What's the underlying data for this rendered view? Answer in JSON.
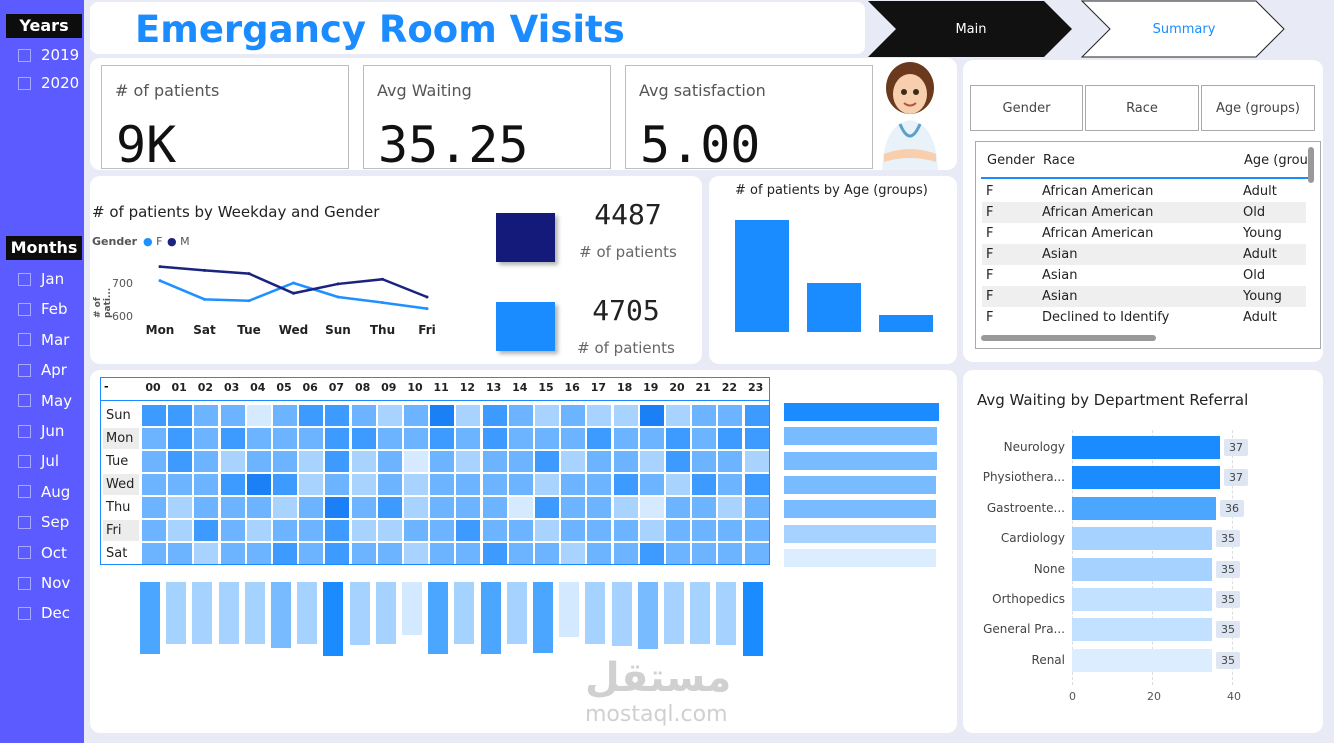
{
  "title": "Emergancy Room Visits",
  "tabs": [
    {
      "label": "Main",
      "active": true
    },
    {
      "label": "Summary",
      "active": false
    }
  ],
  "sidebar": {
    "years_header": "Years",
    "years": [
      "2019",
      "2020"
    ],
    "months_header": "Months",
    "months": [
      "Jan",
      "Feb",
      "Mar",
      "Apr",
      "May",
      "Jun",
      "Jul",
      "Aug",
      "Sep",
      "Oct",
      "Nov",
      "Dec"
    ]
  },
  "kpis": [
    {
      "label": "# of patients",
      "value": "9K"
    },
    {
      "label": "Avg Waiting",
      "value": "35.25"
    },
    {
      "label": "Avg satisfaction",
      "value": "5.00"
    }
  ],
  "weekday_chart": {
    "title": "# of patients by Weekday and Gender",
    "legend_title": "Gender",
    "legend": [
      {
        "name": "F",
        "color": "#1e90ff"
      },
      {
        "name": "M",
        "color": "#1a237e"
      }
    ],
    "ylabel": "# of pati...",
    "yticks": [
      "700",
      "600"
    ]
  },
  "gender_cards": [
    {
      "value": "4487",
      "label": "# of patients",
      "color": "#131a7a"
    },
    {
      "value": "4705",
      "label": "# of patients",
      "color": "#1b8cff"
    }
  ],
  "age_chart": {
    "title": "# of patients by Age (groups)"
  },
  "slicers": [
    "Gender",
    "Race",
    "Age (groups)"
  ],
  "table": {
    "headers": [
      "Gender",
      "Race",
      "Age (grou"
    ],
    "rows": [
      [
        "F",
        "African American",
        "Adult"
      ],
      [
        "F",
        "African American",
        "Old"
      ],
      [
        "F",
        "African American",
        "Young"
      ],
      [
        "F",
        "Asian",
        "Adult"
      ],
      [
        "F",
        "Asian",
        "Old"
      ],
      [
        "F",
        "Asian",
        "Young"
      ],
      [
        "F",
        "Declined to Identify",
        "Adult"
      ]
    ]
  },
  "heatmap": {
    "corner": "-",
    "hours": [
      "00",
      "01",
      "02",
      "03",
      "04",
      "05",
      "06",
      "07",
      "08",
      "09",
      "10",
      "11",
      "12",
      "13",
      "14",
      "15",
      "16",
      "17",
      "18",
      "19",
      "20",
      "21",
      "22",
      "23"
    ],
    "days": [
      "Sun",
      "Mon",
      "Tue",
      "Wed",
      "Thu",
      "Fri",
      "Sat"
    ]
  },
  "dept_chart": {
    "title": "Avg Waiting by Department Referral",
    "xticks": [
      "0",
      "20",
      "40"
    ]
  },
  "watermark": {
    "arabic": "مستقل",
    "latin": "mostaql.com"
  },
  "chart_data": [
    {
      "type": "line",
      "title": "# of patients by Weekday and Gender",
      "categories": [
        "Mon",
        "Sat",
        "Tue",
        "Wed",
        "Sun",
        "Thu",
        "Fri"
      ],
      "series": [
        {
          "name": "F",
          "values": [
            675,
            635,
            632,
            670,
            640,
            628,
            615
          ],
          "color": "#1e90ff"
        },
        {
          "name": "M",
          "values": [
            705,
            697,
            690,
            648,
            668,
            678,
            640
          ],
          "color": "#1a237e"
        }
      ],
      "ylim": [
        580,
        730
      ],
      "legend": "top-left"
    },
    {
      "type": "bar",
      "title": "# of patients by Age (groups)",
      "categories": [
        "",
        "",
        ""
      ],
      "values": [
        5600,
        2450,
        850
      ],
      "ylim": [
        0,
        6000
      ],
      "color": "#1b8cff"
    },
    {
      "type": "heatmap",
      "x": [
        "00",
        "01",
        "02",
        "03",
        "04",
        "05",
        "06",
        "07",
        "08",
        "09",
        "10",
        "11",
        "12",
        "13",
        "14",
        "15",
        "16",
        "17",
        "18",
        "19",
        "20",
        "21",
        "22",
        "23"
      ],
      "y": [
        "Sun",
        "Mon",
        "Tue",
        "Wed",
        "Thu",
        "Fri",
        "Sat"
      ],
      "values": [
        [
          4,
          4,
          3,
          3,
          1,
          3,
          4,
          4,
          3,
          2,
          3,
          5,
          2,
          4,
          3,
          2,
          3,
          2,
          2,
          5,
          2,
          3,
          3,
          4
        ],
        [
          3,
          4,
          3,
          4,
          3,
          3,
          3,
          4,
          4,
          3,
          3,
          4,
          3,
          4,
          3,
          3,
          3,
          4,
          3,
          3,
          4,
          3,
          4,
          4
        ],
        [
          3,
          4,
          3,
          2,
          3,
          3,
          2,
          4,
          2,
          3,
          1,
          3,
          2,
          3,
          3,
          4,
          2,
          3,
          3,
          2,
          4,
          3,
          3,
          2
        ],
        [
          3,
          3,
          3,
          4,
          5,
          4,
          2,
          3,
          2,
          3,
          2,
          3,
          3,
          3,
          3,
          2,
          3,
          3,
          4,
          3,
          2,
          4,
          3,
          4
        ],
        [
          3,
          2,
          3,
          3,
          3,
          2,
          3,
          5,
          3,
          4,
          2,
          3,
          3,
          3,
          1,
          4,
          3,
          3,
          2,
          1,
          3,
          3,
          2,
          3
        ],
        [
          3,
          2,
          4,
          3,
          2,
          3,
          3,
          4,
          2,
          2,
          3,
          3,
          4,
          3,
          3,
          2,
          3,
          3,
          3,
          2,
          3,
          3,
          3,
          3
        ],
        [
          3,
          3,
          2,
          3,
          3,
          4,
          3,
          4,
          3,
          3,
          2,
          3,
          3,
          4,
          3,
          3,
          2,
          3,
          3,
          4,
          3,
          3,
          3,
          3
        ]
      ]
    },
    {
      "type": "bar",
      "orientation": "vertical",
      "categories": [
        "00",
        "01",
        "02",
        "03",
        "04",
        "05",
        "06",
        "07",
        "08",
        "09",
        "10",
        "11",
        "12",
        "13",
        "14",
        "15",
        "16",
        "17",
        "18",
        "19",
        "20",
        "21",
        "22",
        "23"
      ],
      "values": [
        388,
        375,
        376,
        376,
        376,
        380,
        376,
        390,
        377,
        376,
        365,
        388,
        376,
        388,
        375,
        386,
        367,
        375,
        378,
        382,
        376,
        376,
        377,
        390
      ],
      "ylim": [
        0,
        400
      ]
    },
    {
      "type": "bar",
      "orientation": "horizontal",
      "categories": [
        "Sun",
        "Mon",
        "Tue",
        "Wed",
        "Thu",
        "Fri",
        "Sat"
      ],
      "values": [
        1350,
        1330,
        1330,
        1328,
        1328,
        1325,
        1320
      ],
      "xlim": [
        0,
        1350
      ]
    },
    {
      "type": "bar",
      "orientation": "horizontal",
      "title": "Avg Waiting by Department Referral",
      "categories": [
        "Neurology",
        "Physiothera...",
        "Gastroente...",
        "Cardiology",
        "None",
        "Orthopedics",
        "General Pra...",
        "Renal"
      ],
      "values": [
        37,
        37,
        36,
        35,
        35,
        35,
        35,
        35
      ],
      "xlim": [
        0,
        45
      ],
      "xticks": [
        0,
        20,
        40
      ]
    }
  ]
}
